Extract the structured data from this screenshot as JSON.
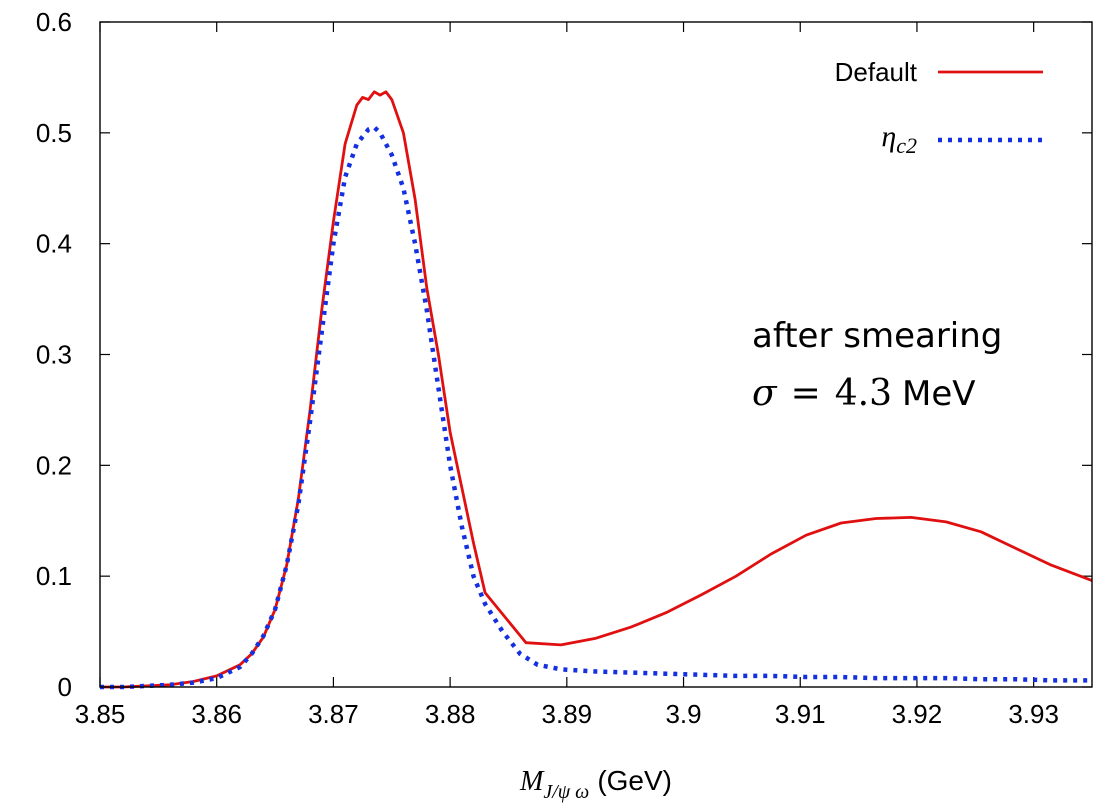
{
  "chart_data": {
    "type": "line",
    "xlabel": {
      "symbol": "M",
      "subscript": "J/ψ ω",
      "unit": "(GeV)"
    },
    "ylabel": "",
    "xlim": [
      3.85,
      3.935
    ],
    "ylim": [
      0,
      0.6
    ],
    "xticks": [
      {
        "value": 3.85,
        "label": "3.85"
      },
      {
        "value": 3.86,
        "label": "3.86"
      },
      {
        "value": 3.87,
        "label": "3.87"
      },
      {
        "value": 3.88,
        "label": "3.88"
      },
      {
        "value": 3.89,
        "label": "3.89"
      },
      {
        "value": 3.9,
        "label": "3.9"
      },
      {
        "value": 3.91,
        "label": "3.91"
      },
      {
        "value": 3.92,
        "label": "3.92"
      },
      {
        "value": 3.93,
        "label": "3.93"
      }
    ],
    "yticks": [
      {
        "value": 0,
        "label": "0"
      },
      {
        "value": 0.1,
        "label": "0.1"
      },
      {
        "value": 0.2,
        "label": "0.2"
      },
      {
        "value": 0.3,
        "label": "0.3"
      },
      {
        "value": 0.4,
        "label": "0.4"
      },
      {
        "value": 0.5,
        "label": "0.5"
      },
      {
        "value": 0.6,
        "label": "0.6"
      }
    ],
    "legend_position": "top-right",
    "series": [
      {
        "name": "Default",
        "color": "#e01010",
        "style": "solid",
        "x": [
          3.85,
          3.852,
          3.854,
          3.856,
          3.858,
          3.86,
          3.862,
          3.863,
          3.864,
          3.865,
          3.866,
          3.867,
          3.868,
          3.869,
          3.87,
          3.871,
          3.872,
          3.8725,
          3.873,
          3.8735,
          3.874,
          3.8745,
          3.875,
          3.876,
          3.877,
          3.878,
          3.879,
          3.88,
          3.881,
          3.882,
          3.883,
          3.8865,
          3.8895,
          3.8925,
          3.8955,
          3.8985,
          3.9015,
          3.9045,
          3.9075,
          3.9105,
          3.9135,
          3.9165,
          3.9195,
          3.9225,
          3.9255,
          3.9285,
          3.9315,
          3.935
        ],
        "y": [
          0.0,
          0.0,
          0.001,
          0.002,
          0.005,
          0.01,
          0.02,
          0.03,
          0.045,
          0.07,
          0.11,
          0.17,
          0.25,
          0.34,
          0.42,
          0.49,
          0.525,
          0.532,
          0.53,
          0.537,
          0.534,
          0.537,
          0.53,
          0.5,
          0.44,
          0.36,
          0.3,
          0.23,
          0.18,
          0.13,
          0.085,
          0.04,
          0.038,
          0.044,
          0.054,
          0.067,
          0.083,
          0.1,
          0.12,
          0.137,
          0.148,
          0.152,
          0.153,
          0.149,
          0.14,
          0.125,
          0.11,
          0.096
        ]
      },
      {
        "name": "η_c2",
        "color": "#1530e0",
        "style": "dotted",
        "x": [
          3.85,
          3.852,
          3.854,
          3.856,
          3.858,
          3.86,
          3.862,
          3.863,
          3.864,
          3.865,
          3.866,
          3.867,
          3.868,
          3.869,
          3.87,
          3.871,
          3.872,
          3.873,
          3.8735,
          3.874,
          3.875,
          3.876,
          3.877,
          3.878,
          3.879,
          3.88,
          3.881,
          3.882,
          3.883,
          3.8845,
          3.886,
          3.8875,
          3.8895,
          3.8925,
          3.8955,
          3.8985,
          3.9015,
          3.9045,
          3.9075,
          3.9105,
          3.9135,
          3.9165,
          3.9195,
          3.9225,
          3.9255,
          3.9285,
          3.9315,
          3.935
        ],
        "y": [
          0.0,
          0.0,
          0.001,
          0.002,
          0.004,
          0.008,
          0.018,
          0.03,
          0.046,
          0.07,
          0.11,
          0.165,
          0.24,
          0.32,
          0.4,
          0.46,
          0.49,
          0.503,
          0.505,
          0.5,
          0.48,
          0.45,
          0.4,
          0.34,
          0.27,
          0.2,
          0.145,
          0.1,
          0.075,
          0.05,
          0.03,
          0.02,
          0.016,
          0.014,
          0.013,
          0.012,
          0.011,
          0.01,
          0.01,
          0.009,
          0.009,
          0.008,
          0.008,
          0.008,
          0.007,
          0.007,
          0.006,
          0.006
        ]
      }
    ],
    "legend": [
      {
        "label": "Default",
        "series": 0
      },
      {
        "label_symbol": "η",
        "label_sub": "c2",
        "series": 1
      }
    ],
    "annotations": {
      "line1": "after smearing",
      "sigma_symbol": "σ",
      "equals": "=",
      "sigma_value": "4.3",
      "sigma_unit": "MeV"
    }
  }
}
